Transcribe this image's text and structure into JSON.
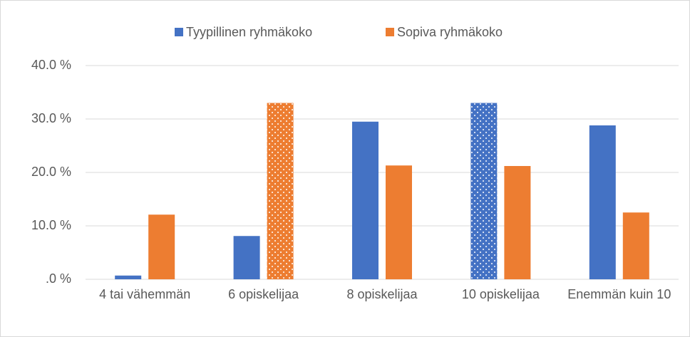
{
  "chart_data": {
    "type": "bar",
    "categories": [
      "4 tai vähemmän",
      "6 opiskelijaa",
      "8 opiskelijaa",
      "10 opiskelijaa",
      "Enemmän kuin 10"
    ],
    "series": [
      {
        "name": "Tyypillinen ryhmäkoko",
        "color": "#4472c4",
        "values": [
          0.7,
          8.1,
          29.5,
          33.0,
          28.8
        ],
        "dotted": [
          3
        ]
      },
      {
        "name": "Sopiva ryhmäkoko",
        "color": "#ed7d31",
        "values": [
          12.1,
          33.0,
          21.3,
          21.2,
          12.5
        ],
        "dotted": [
          1
        ]
      }
    ],
    "ylim": [
      0,
      40
    ],
    "yticks": [
      {
        "value": 0,
        "label": ".0 %"
      },
      {
        "value": 10,
        "label": "10.0 %"
      },
      {
        "value": 20,
        "label": "20.0 %"
      },
      {
        "value": 30,
        "label": "30.0 %"
      },
      {
        "value": 40,
        "label": "40.0 %"
      }
    ],
    "grid": true,
    "legend": "top"
  }
}
